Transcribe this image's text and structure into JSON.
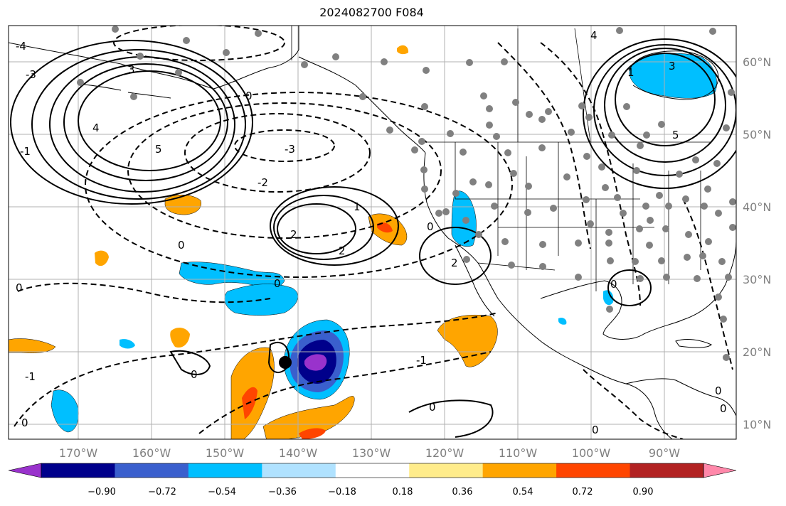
{
  "title": "2024082700 F084",
  "longitude_labels": [
    "170°W",
    "160°W",
    "150°W",
    "140°W",
    "130°W",
    "120°W",
    "110°W",
    "100°W",
    "90°W"
  ],
  "latitude_labels": [
    "60°N",
    "50°N",
    "40°N",
    "30°N",
    "20°N",
    "10°N"
  ],
  "colorbar": {
    "tick_labels": [
      "−0.90",
      "−0.72",
      "−0.54",
      "−0.36",
      "−0.18",
      "0.18",
      "0.36",
      "0.54",
      "0.72",
      "0.90"
    ],
    "colors": [
      "#9932cc",
      "#00008b",
      "#3a5fcd",
      "#00bfff",
      "#b0e2ff",
      "#ffffff",
      "#ffec8b",
      "#ffa500",
      "#ff4500",
      "#b22222",
      "#ff88aa"
    ]
  },
  "contour_labels": [
    "-4",
    "-3",
    "-2",
    "-1",
    "0",
    "1",
    "2",
    "3",
    "4",
    "5"
  ],
  "colors": {
    "land_border": "#000000",
    "grid": "#b0b0b0",
    "station_marker": "#808080",
    "storm_marker": "#000000"
  }
}
